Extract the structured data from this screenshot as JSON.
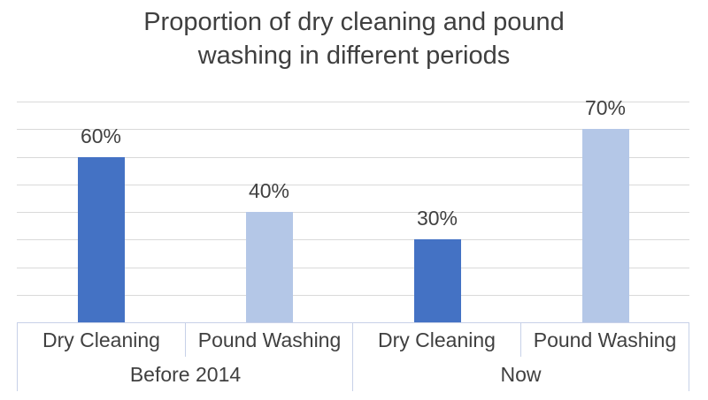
{
  "title": {
    "lines": [
      "Proportion of dry cleaning and pound",
      "washing in different periods"
    ]
  },
  "chart_data": {
    "type": "bar",
    "title": "Proportion of dry cleaning and pound washing in different periods",
    "xlabel": "",
    "ylabel": "",
    "ylim": [
      0,
      80
    ],
    "gridline_step": 10,
    "grid": true,
    "legend": "none",
    "value_suffix": "%",
    "groups": [
      {
        "label": "Before 2014",
        "bars": [
          {
            "category": "Dry Cleaning",
            "value": 60,
            "data_label": "60%",
            "color_key": "dry_cleaning"
          },
          {
            "category": "Pound Washing",
            "value": 40,
            "data_label": "40%",
            "color_key": "pound_washing"
          }
        ]
      },
      {
        "label": "Now",
        "bars": [
          {
            "category": "Dry Cleaning",
            "value": 30,
            "data_label": "30%",
            "color_key": "dry_cleaning"
          },
          {
            "category": "Pound Washing",
            "value": 70,
            "data_label": "70%",
            "color_key": "pound_washing"
          }
        ]
      }
    ],
    "colors": {
      "dry_cleaning": "#4472c4",
      "pound_washing": "#b4c7e7",
      "gridline": "#d9d9d9",
      "axis_border": "#c7d1e8",
      "text": "#404040",
      "title_text": "#3f3f3f"
    }
  }
}
